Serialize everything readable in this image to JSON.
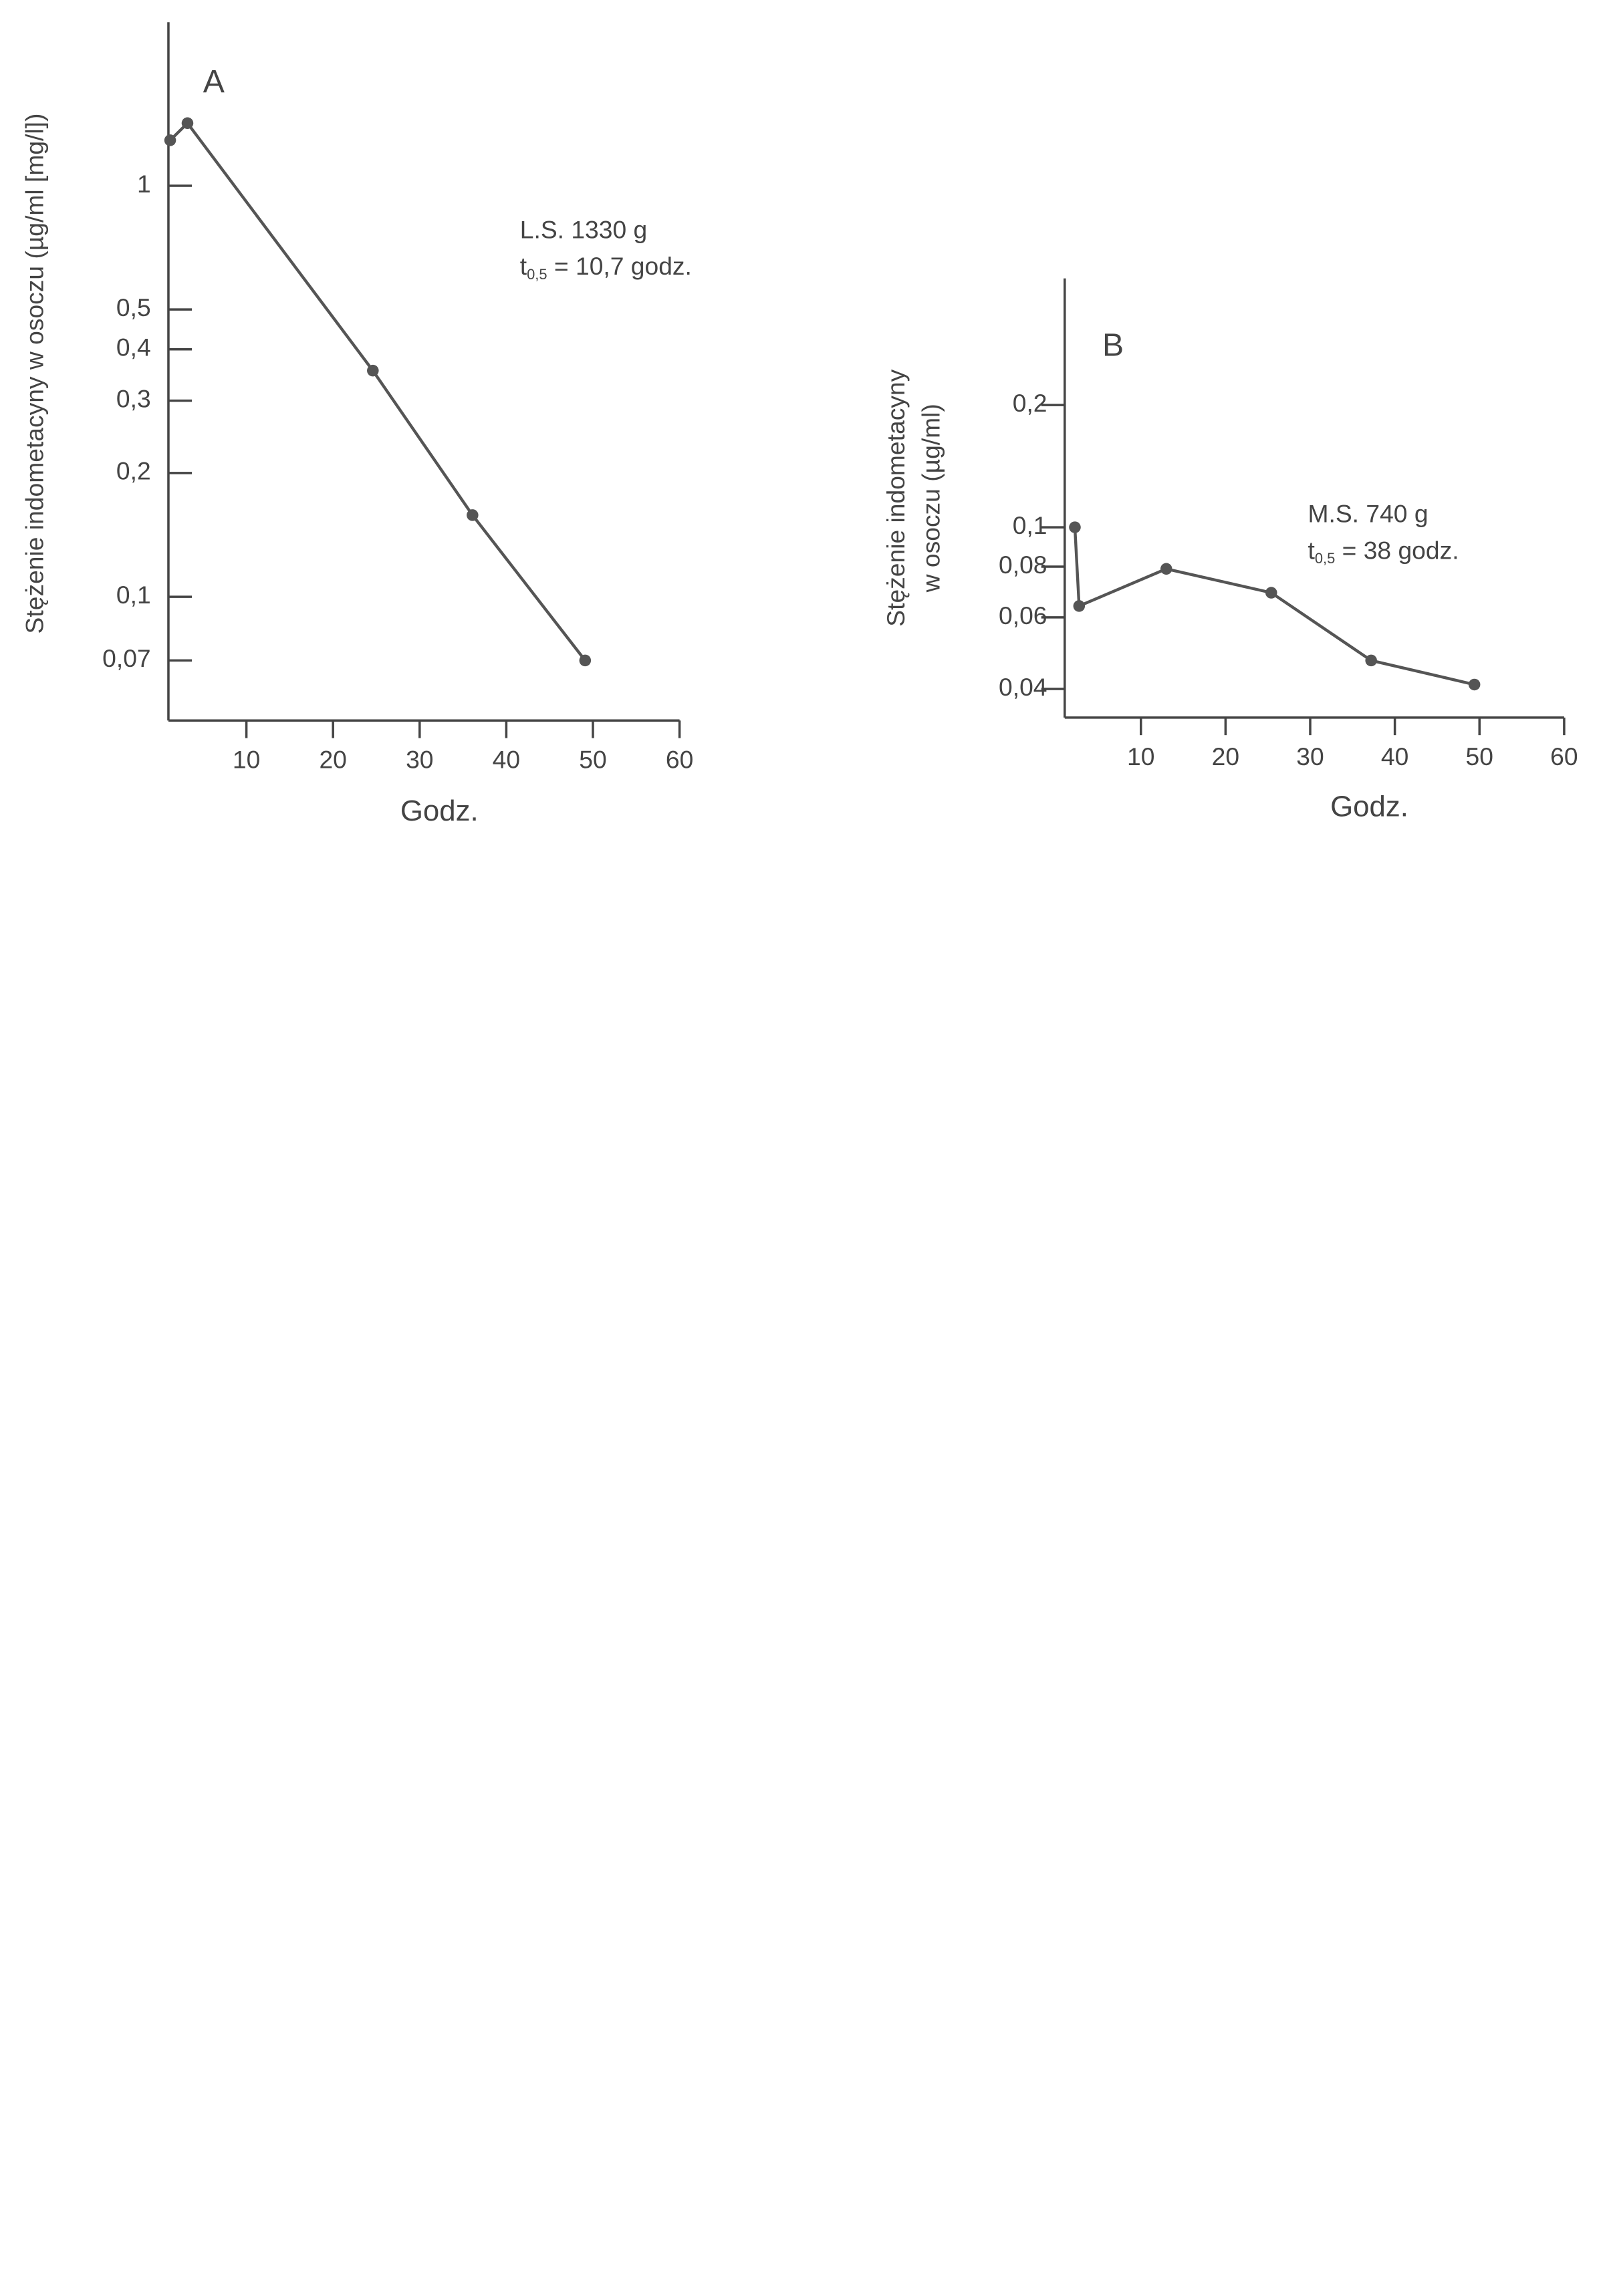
{
  "chart_data": [
    {
      "type": "line",
      "panel_label": "A",
      "y_label": [
        "Stężenie indometacyny w osoczu (µg/ml [mg/l])"
      ],
      "x_label": "Godz.",
      "annotation": {
        "line1": "L.S. 1330 g",
        "t": "t",
        "sub": "0,5",
        "rest": " = 10,7 godz."
      },
      "x": [
        1.2,
        3.2,
        24.6,
        36.1,
        49.1
      ],
      "values": [
        1.29,
        1.42,
        0.355,
        0.158,
        0.07
      ],
      "color": "#555555",
      "log_y": true,
      "xlim": [
        1,
        60
      ],
      "xticks": [
        10,
        20,
        30,
        40,
        50,
        60
      ],
      "ylim": [
        0.05,
        2.5
      ],
      "yticks": [
        1,
        {
          "value": 0.5,
          "label": "0,5"
        },
        {
          "value": 0.4,
          "label": "0,4"
        },
        {
          "value": 0.3,
          "label": "0,3"
        },
        {
          "value": 0.2,
          "label": "0,2"
        },
        {
          "value": 0.1,
          "label": "0,1"
        },
        {
          "value": 0.07,
          "label": "0,07"
        }
      ]
    },
    {
      "type": "line",
      "panel_label": "B",
      "y_label": [
        "Stężenie indometacyny",
        "w osoczu (µg/ml)"
      ],
      "x_label": "Godz.",
      "annotation": {
        "line1": "M.S. 740 g",
        "t": "t",
        "sub": "0,5",
        "rest": " = 38 godz."
      },
      "x": [
        2.2,
        2.7,
        13,
        25.4,
        37.2,
        49.4
      ],
      "values": [
        0.1,
        0.064,
        0.079,
        0.069,
        0.047,
        0.041
      ],
      "color": "#555555",
      "log_y": true,
      "xlim": [
        1,
        60
      ],
      "xticks": [
        10,
        20,
        30,
        40,
        50,
        60
      ],
      "ylim": [
        0.034,
        0.41
      ],
      "yticks": [
        {
          "value": 0.2,
          "label": "0,2"
        },
        {
          "value": 0.1,
          "label": "0,1"
        },
        {
          "value": 0.08,
          "label": "0,08"
        },
        {
          "value": 0.06,
          "label": "0,06"
        },
        {
          "value": 0.04,
          "label": "0,04"
        }
      ]
    }
  ]
}
